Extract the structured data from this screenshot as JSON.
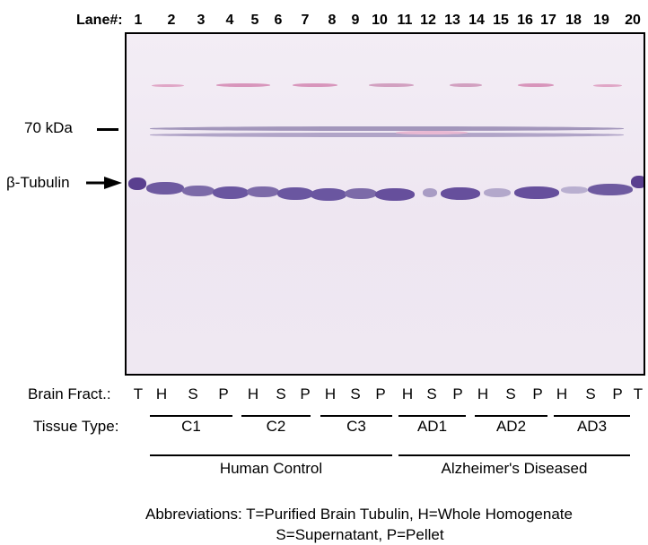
{
  "lane_label": "Lane#:",
  "lanes": [
    "1",
    "2",
    "3",
    "4",
    "5",
    "6",
    "7",
    "8",
    "9",
    "10",
    "11",
    "12",
    "13",
    "14",
    "15",
    "16",
    "17",
    "18",
    "19",
    "20"
  ],
  "markers": {
    "kda70": "70 kDa",
    "tubulin": "β-Tubulin"
  },
  "brain_fract_label": "Brain Fract.:",
  "fractions": [
    "T",
    "H",
    "S",
    "P",
    "H",
    "S",
    "P",
    "H",
    "S",
    "P",
    "H",
    "S",
    "P",
    "H",
    "S",
    "P",
    "H",
    "S",
    "P",
    "T"
  ],
  "tissue_type_label": "Tissue Type:",
  "tissue_groups": [
    "C1",
    "C2",
    "C3",
    "AD1",
    "AD2",
    "AD3"
  ],
  "super_groups": [
    "Human Control",
    "Alzheimer's Diseased"
  ],
  "abbreviations": {
    "line1": "Abbreviations: T=Purified Brain Tubulin, H=Whole Homogenate",
    "line2": "S=Supernatant, P=Pellet"
  },
  "colors": {
    "blot_bg": "#efe8f2",
    "band_dark": "#5a3f8f",
    "band_mid": "#8a7aa8",
    "band_pink": "#d890b8"
  }
}
